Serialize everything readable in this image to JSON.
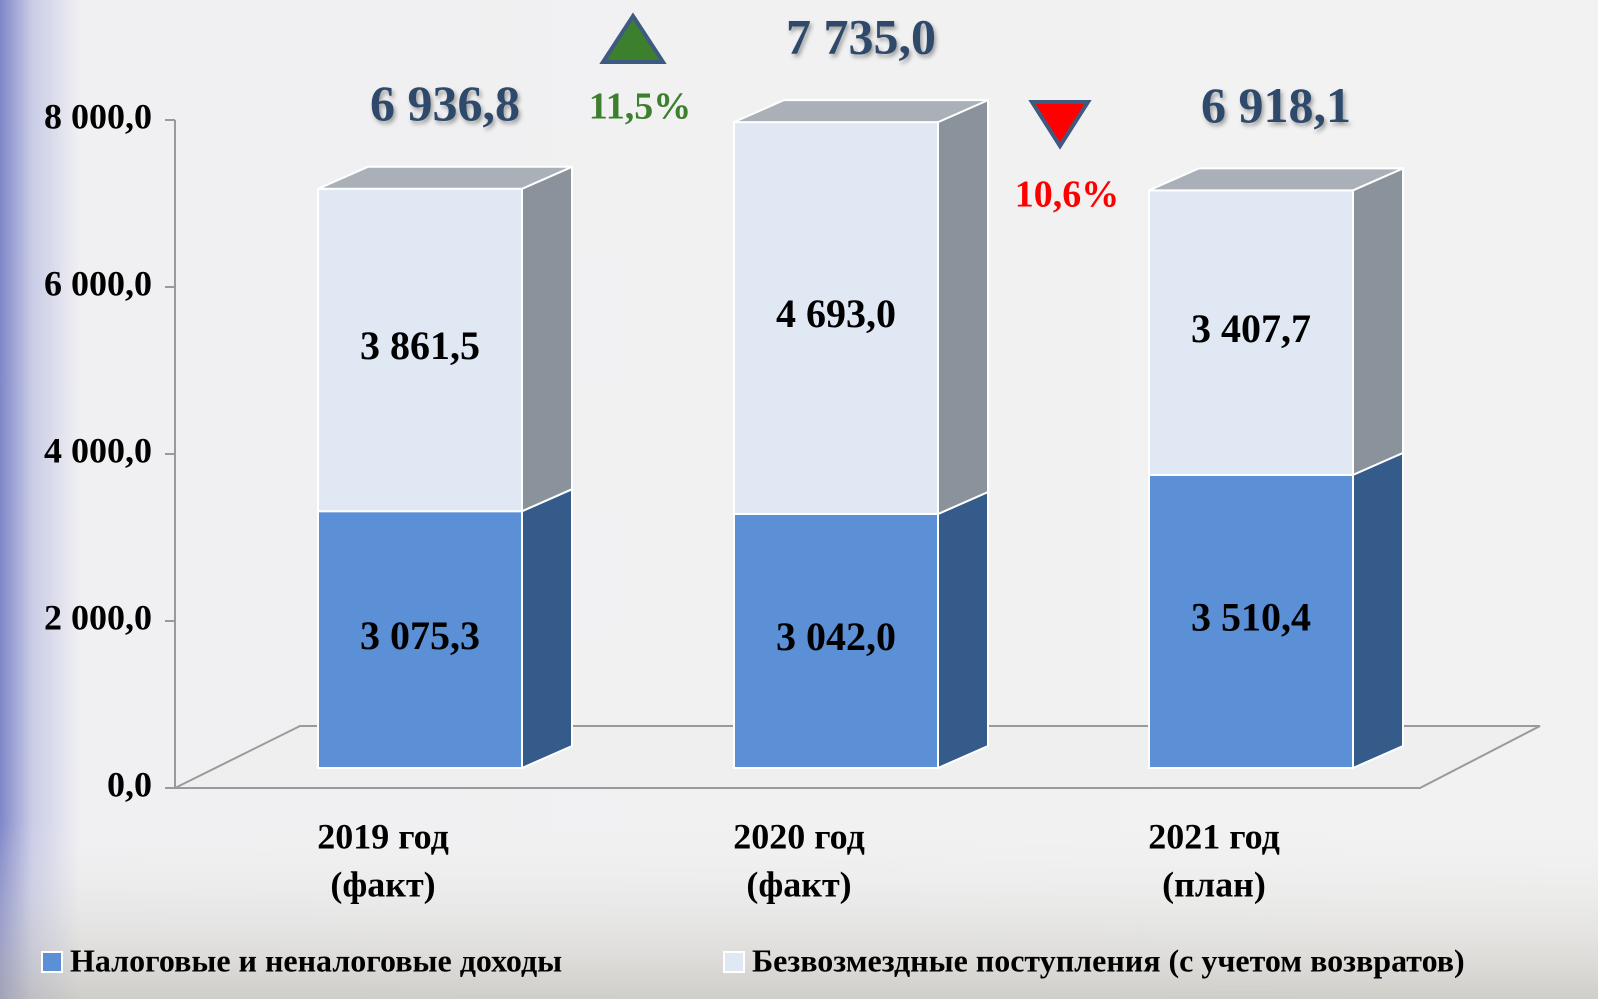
{
  "chart_data": {
    "type": "stacked_bar_3d",
    "categories": [
      [
        "2019 год",
        "(факт)"
      ],
      [
        "2020 год",
        "(факт)"
      ],
      [
        "2021 год",
        "(план)"
      ]
    ],
    "series": [
      {
        "name": "Налоговые и неналоговые доходы",
        "color": "#5b8fd6",
        "side_color": "#355b8a",
        "values": [
          3075.3,
          3042.0,
          3510.4
        ],
        "value_labels": [
          "3 075,3",
          "3 042,0",
          "3 510,4"
        ]
      },
      {
        "name": "Безвозмездные поступления (с учетом возвратов)",
        "color": "#dfe8f3",
        "side_color": "#8a939c",
        "values": [
          3861.5,
          4693.0,
          3407.7
        ],
        "value_labels": [
          "3 861,5",
          "4 693,0",
          "3 407,7"
        ]
      }
    ],
    "totals": [
      6936.8,
      7735.0,
      6918.1
    ],
    "total_labels": [
      "6 936,8",
      "7 735,0",
      "6 918,1"
    ],
    "changes": [
      {
        "label": "11,5%",
        "value": 11.5,
        "direction": "up",
        "color": "#3c7f2c"
      },
      {
        "label": "10,6%",
        "value": 10.6,
        "direction": "down",
        "color": "#ff0000"
      }
    ],
    "ylim": [
      0,
      8000
    ],
    "yticks": [
      {
        "value": 0,
        "label": "0,0"
      },
      {
        "value": 2000,
        "label": "2 000,0"
      },
      {
        "value": 4000,
        "label": "4 000,0"
      },
      {
        "value": 6000,
        "label": "6 000,0"
      },
      {
        "value": 8000,
        "label": "8 000,0"
      }
    ]
  }
}
